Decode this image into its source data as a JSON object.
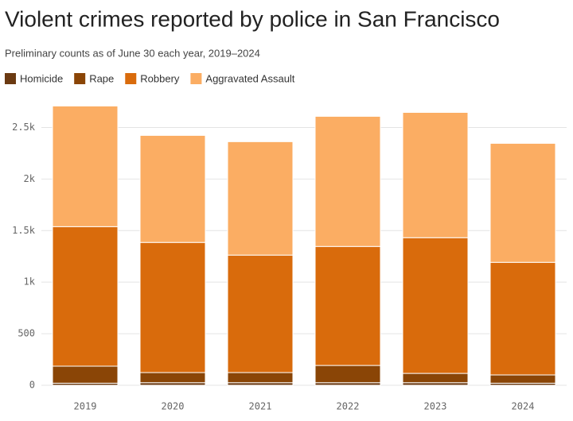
{
  "chart_data": {
    "type": "stacked_bar",
    "title": "Violent crimes reported by police in San Francisco",
    "subtitle": "Preliminary counts as of June 30 each year, 2019–2024",
    "categories": [
      "2019",
      "2020",
      "2021",
      "2022",
      "2023",
      "2024"
    ],
    "series": [
      {
        "name": "Homicide",
        "color": "#6b3a12",
        "values": [
          20,
          25,
          25,
          25,
          25,
          20
        ]
      },
      {
        "name": "Rape",
        "color": "#8a4506",
        "values": [
          165,
          98,
          98,
          167,
          90,
          80
        ]
      },
      {
        "name": "Robbery",
        "color": "#d96b0c",
        "values": [
          1353,
          1262,
          1139,
          1154,
          1316,
          1092
        ]
      },
      {
        "name": "Aggravated Assault",
        "color": "#fbad63",
        "values": [
          1170,
          1038,
          1100,
          1262,
          1215,
          1154
        ]
      }
    ],
    "ylim": [
      0,
      2750
    ],
    "yticks": [
      0,
      500,
      {
        "value": 1000,
        "label": "1k"
      },
      {
        "value": 1500,
        "label": "1.5k"
      },
      {
        "value": 2000,
        "label": "2k"
      },
      {
        "value": 2500,
        "label": "2.5k"
      }
    ],
    "grid": true
  }
}
